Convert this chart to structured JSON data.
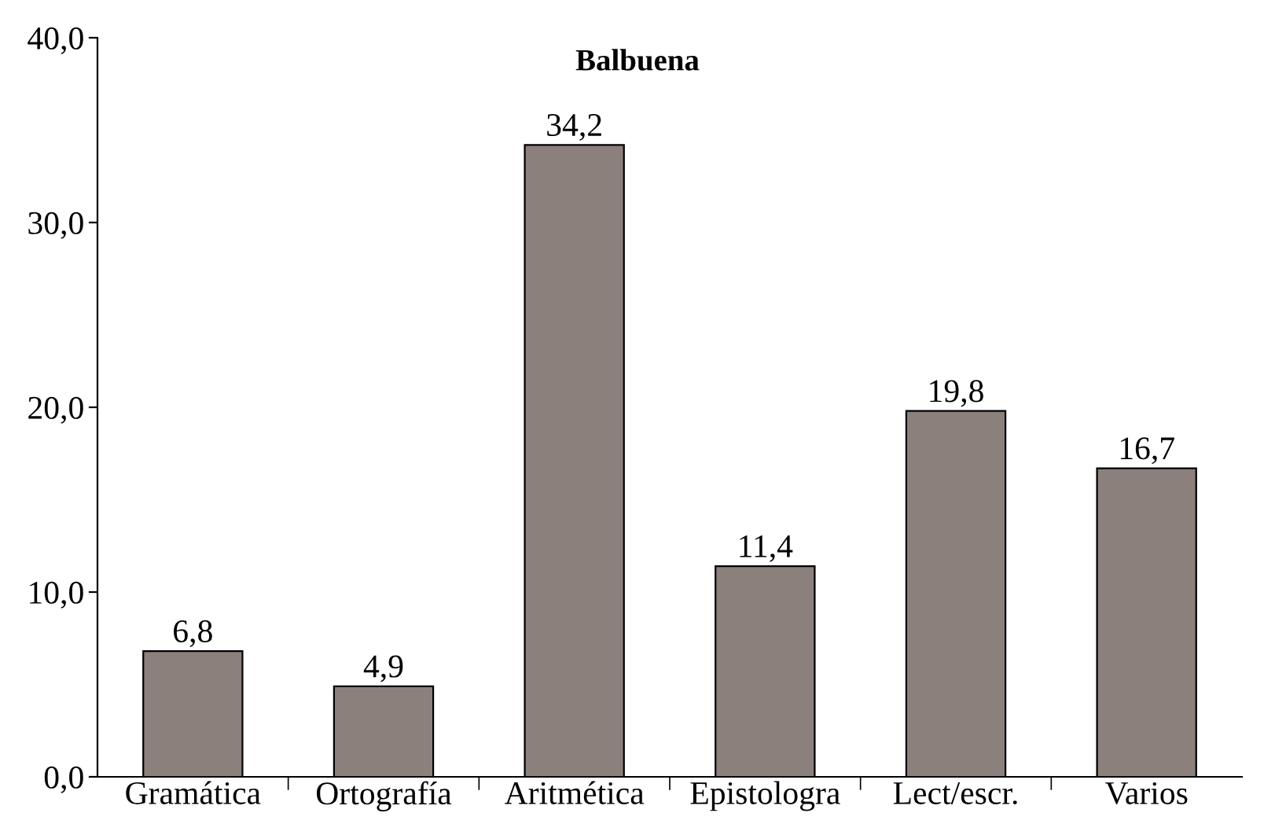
{
  "chart_data": {
    "type": "bar",
    "title": "Balbuena",
    "categories": [
      "Gramática",
      "Ortografía",
      "Aritmética",
      "Epistologra",
      "Lect/escr.",
      "Varios"
    ],
    "values": [
      6.8,
      4.9,
      34.2,
      11.4,
      19.8,
      16.7
    ],
    "value_labels": [
      "6,8",
      "4,9",
      "34,2",
      "11,4",
      "19,8",
      "16,7"
    ],
    "color": "#8c807d",
    "ylim": [
      0,
      40
    ],
    "yticks": [
      {
        "value": 0,
        "label": "0,0"
      },
      {
        "value": 10,
        "label": "10,0"
      },
      {
        "value": 20,
        "label": "20,0"
      },
      {
        "value": 30,
        "label": "30,0"
      },
      {
        "value": 40,
        "label": "40,0"
      }
    ],
    "grid": false,
    "legend": false
  }
}
